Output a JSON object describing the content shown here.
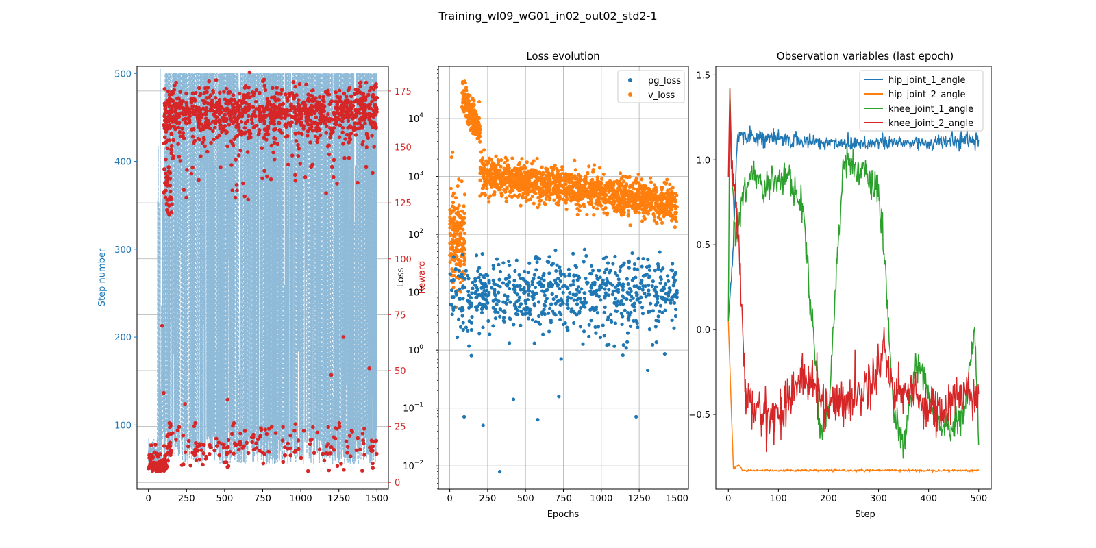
{
  "figure": {
    "title": "Training_wl09_wG01_in02_out02_std2-1",
    "background": "#ffffff"
  },
  "colors": {
    "blue": "#1f77b4",
    "orange": "#ff7f0e",
    "green": "#2ca02c",
    "red": "#d62728",
    "light_blue": "#8fbbd9",
    "grid": "#b0b0b0"
  },
  "chart_data": [
    {
      "id": "training",
      "type": "line+scatter",
      "title": "",
      "xlabel": "",
      "ylabel_left": "Step number",
      "ylabel_right": "Reward",
      "xlim": [
        -75,
        1575
      ],
      "ylim_left": [
        27,
        508
      ],
      "ylim_right": [
        -3,
        186
      ],
      "x_ticks": [
        0,
        250,
        500,
        750,
        1000,
        1250,
        1500
      ],
      "y_ticks_left": [
        100,
        200,
        300,
        400,
        500
      ],
      "y_ticks_right": [
        0,
        25,
        50,
        75,
        100,
        125,
        150,
        175
      ],
      "grid": "horizontal on right axis",
      "series": [
        {
          "axis": "left",
          "style": "dashed line",
          "color": "#8fbbd9",
          "description_values": "step count per epoch oscillating 50–500",
          "x_range": [
            0,
            1500
          ],
          "ymin": 45,
          "ymax": 500
        },
        {
          "axis": "right",
          "style": "scatter",
          "color": "#d62728",
          "clusters": [
            {
              "x_range": [
                100,
                1500
              ],
              "y_center": 165,
              "y_spread": 10
            },
            {
              "x_range": [
                0,
                1500
              ],
              "y_center": 12,
              "y_spread": 8
            }
          ],
          "outliers": [
            [
              90,
              70
            ],
            [
              100,
              40
            ],
            [
              240,
              35
            ],
            [
              520,
              37
            ],
            [
              1280,
              65
            ],
            [
              1450,
              51
            ],
            [
              1200,
              48
            ]
          ]
        }
      ]
    },
    {
      "id": "loss",
      "type": "scatter",
      "title": "Loss evolution",
      "xlabel": "Epochs",
      "ylabel": "Loss",
      "yscale": "log",
      "xlim": [
        -75,
        1575
      ],
      "ylim_log10": [
        -2.4,
        4.9
      ],
      "x_ticks": [
        0,
        250,
        500,
        750,
        1000,
        1250,
        1500
      ],
      "y_ticks_log10": [
        -2,
        -1,
        0,
        1,
        2,
        3,
        4
      ],
      "y_tick_labels": [
        "10",
        "10",
        "10",
        "10",
        "10",
        "10",
        "10"
      ],
      "y_tick_exponents": [
        "−2",
        "−1",
        "0",
        "1",
        "2",
        "3",
        "4"
      ],
      "grid": true,
      "legend": {
        "placement": "top-right",
        "entries": [
          "pg_loss",
          "v_loss"
        ]
      },
      "series": [
        {
          "name": "pg_loss",
          "color": "#1f77b4",
          "description_values": "log10 mostly 0.5–1.5, occasional low outliers",
          "x_range": [
            0,
            1500
          ],
          "log10_center": 1.0,
          "log10_spread": 0.5,
          "low_outliers": [
            [
              330,
              -2.1
            ],
            [
              580,
              -1.2
            ],
            [
              220,
              -1.3
            ],
            [
              420,
              -0.85
            ],
            [
              95,
              -1.15
            ],
            [
              1230,
              -1.15
            ],
            [
              720,
              -0.8
            ]
          ]
        },
        {
          "name": "v_loss",
          "color": "#ff7f0e",
          "segments": [
            {
              "x_range": [
                0,
                100
              ],
              "log10_start": 2.2,
              "log10_end": 2.0,
              "spread": 0.5
            },
            {
              "x_range": [
                80,
                200
              ],
              "log10_start": 4.4,
              "log10_end": 3.8,
              "spread": 0.2
            },
            {
              "x_range": [
                200,
                1500
              ],
              "log10_start": 3.05,
              "log10_end": 2.5,
              "spread": 0.22
            }
          ]
        }
      ]
    },
    {
      "id": "observations",
      "type": "line",
      "title": "Observation variables (last epoch)",
      "xlabel": "Step",
      "ylabel": "",
      "xlim": [
        -25,
        525
      ],
      "ylim": [
        -0.94,
        1.55
      ],
      "x_ticks": [
        0,
        100,
        200,
        300,
        400,
        500
      ],
      "y_ticks": [
        -0.5,
        0.0,
        0.5,
        1.0,
        1.5
      ],
      "y_tick_labels": [
        "−0.5",
        "0.0",
        "0.5",
        "1.0",
        "1.5"
      ],
      "grid": false,
      "legend": {
        "placement": "top-right",
        "entries": [
          "hip_joint_1_angle",
          "hip_joint_2_angle",
          "knee_joint_1_angle",
          "knee_joint_2_angle"
        ]
      },
      "series": [
        {
          "name": "hip_joint_1_angle",
          "color": "#1f77b4",
          "keypoints": [
            [
              0,
              0.05
            ],
            [
              10,
              0.5
            ],
            [
              18,
              1.15
            ],
            [
              100,
              1.12
            ],
            [
              200,
              1.1
            ],
            [
              300,
              1.1
            ],
            [
              400,
              1.1
            ],
            [
              500,
              1.12
            ]
          ],
          "noise": 0.04
        },
        {
          "name": "hip_joint_2_angle",
          "color": "#ff7f0e",
          "keypoints": [
            [
              0,
              0.05
            ],
            [
              4,
              -0.3
            ],
            [
              10,
              -0.82
            ],
            [
              20,
              -0.8
            ],
            [
              30,
              -0.83
            ],
            [
              500,
              -0.83
            ]
          ],
          "noise": 0.005
        },
        {
          "name": "knee_joint_1_angle",
          "color": "#2ca02c",
          "keypoints": [
            [
              0,
              0.05
            ],
            [
              3,
              1.42
            ],
            [
              8,
              0.85
            ],
            [
              15,
              0.5
            ],
            [
              30,
              0.8
            ],
            [
              50,
              0.95
            ],
            [
              70,
              0.8
            ],
            [
              90,
              0.9
            ],
            [
              120,
              0.9
            ],
            [
              150,
              0.7
            ],
            [
              160,
              0.3
            ],
            [
              175,
              -0.2
            ],
            [
              185,
              -0.6
            ],
            [
              200,
              -0.5
            ],
            [
              215,
              0.3
            ],
            [
              230,
              1.0
            ],
            [
              260,
              0.95
            ],
            [
              300,
              0.8
            ],
            [
              315,
              0.3
            ],
            [
              330,
              -0.5
            ],
            [
              350,
              -0.7
            ],
            [
              375,
              -0.2
            ],
            [
              390,
              -0.3
            ],
            [
              410,
              -0.5
            ],
            [
              440,
              -0.6
            ],
            [
              470,
              -0.5
            ],
            [
              492,
              0.0
            ],
            [
              500,
              -0.65
            ]
          ],
          "noise": 0.08
        },
        {
          "name": "knee_joint_2_angle",
          "color": "#d62728",
          "keypoints": [
            [
              0,
              0.9
            ],
            [
              3,
              1.42
            ],
            [
              6,
              0.9
            ],
            [
              15,
              0.85
            ],
            [
              25,
              0.2
            ],
            [
              35,
              -0.4
            ],
            [
              60,
              -0.5
            ],
            [
              100,
              -0.5
            ],
            [
              140,
              -0.3
            ],
            [
              160,
              -0.3
            ],
            [
              200,
              -0.45
            ],
            [
              250,
              -0.4
            ],
            [
              290,
              -0.3
            ],
            [
              310,
              -0.1
            ],
            [
              330,
              -0.35
            ],
            [
              380,
              -0.4
            ],
            [
              430,
              -0.5
            ],
            [
              470,
              -0.35
            ],
            [
              500,
              -0.4
            ]
          ],
          "noise": 0.12
        }
      ]
    }
  ]
}
